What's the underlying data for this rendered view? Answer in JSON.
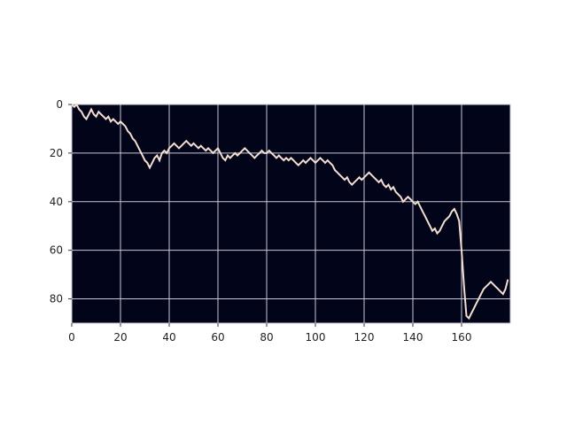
{
  "chart_data": {
    "type": "line",
    "title": "",
    "xlabel": "",
    "ylabel": "",
    "xlim": [
      0,
      180
    ],
    "ylim": [
      90,
      0
    ],
    "y_axis_inverted": true,
    "grid": true,
    "xticks": [
      0,
      20,
      40,
      60,
      80,
      100,
      120,
      140,
      160
    ],
    "yticks": [
      0,
      20,
      40,
      60,
      80
    ],
    "colors": {
      "background": "#02041a",
      "line": "#f3ded0",
      "grid": "#c8c8d4"
    },
    "series": [
      {
        "x": [
          0,
          1,
          2,
          3,
          4,
          5,
          6,
          7,
          8,
          9,
          10,
          11,
          12,
          13,
          14,
          15,
          16,
          17,
          18,
          19,
          20,
          21,
          22,
          23,
          24,
          25,
          26,
          27,
          28,
          29,
          30,
          31,
          32,
          33,
          34,
          35,
          36,
          37,
          38,
          39,
          40,
          41,
          42,
          43,
          44,
          45,
          46,
          47,
          48,
          49,
          50,
          51,
          52,
          53,
          54,
          55,
          56,
          57,
          58,
          59,
          60,
          61,
          62,
          63,
          64,
          65,
          66,
          67,
          68,
          69,
          70,
          71,
          72,
          73,
          74,
          75,
          76,
          77,
          78,
          79,
          80,
          81,
          82,
          83,
          84,
          85,
          86,
          87,
          88,
          89,
          90,
          91,
          92,
          93,
          94,
          95,
          96,
          97,
          98,
          99,
          100,
          101,
          102,
          103,
          104,
          105,
          106,
          107,
          108,
          109,
          110,
          111,
          112,
          113,
          114,
          115,
          116,
          117,
          118,
          119,
          120,
          121,
          122,
          123,
          124,
          125,
          126,
          127,
          128,
          129,
          130,
          131,
          132,
          133,
          134,
          135,
          136,
          137,
          138,
          139,
          140,
          141,
          142,
          143,
          144,
          145,
          146,
          147,
          148,
          149,
          150,
          151,
          152,
          153,
          154,
          155,
          156,
          157,
          158,
          159,
          160,
          161,
          162,
          163,
          164,
          165,
          166,
          167,
          168,
          169,
          170,
          171,
          172,
          173,
          174,
          175,
          176,
          177,
          178,
          179
        ],
        "y": [
          0,
          1,
          0,
          2,
          3,
          5,
          6,
          4,
          2,
          4,
          5,
          3,
          4,
          5,
          6,
          5,
          7,
          6,
          7,
          8,
          7,
          8,
          9,
          11,
          12,
          14,
          15,
          17,
          19,
          21,
          23,
          24,
          26,
          24,
          22,
          21,
          23,
          20,
          19,
          20,
          18,
          17,
          16,
          17,
          18,
          17,
          16,
          15,
          16,
          17,
          16,
          17,
          18,
          17,
          18,
          19,
          18,
          19,
          20,
          19,
          18,
          20,
          22,
          23,
          21,
          22,
          21,
          20,
          21,
          20,
          19,
          18,
          19,
          20,
          21,
          22,
          21,
          20,
          19,
          20,
          20,
          19,
          20,
          21,
          22,
          21,
          22,
          23,
          22,
          23,
          22,
          23,
          24,
          25,
          24,
          23,
          24,
          23,
          22,
          23,
          24,
          23,
          22,
          23,
          24,
          23,
          24,
          25,
          27,
          28,
          29,
          30,
          31,
          30,
          32,
          33,
          32,
          31,
          30,
          31,
          30,
          29,
          28,
          29,
          30,
          31,
          32,
          31,
          33,
          34,
          33,
          35,
          34,
          36,
          37,
          38,
          40,
          39,
          38,
          39,
          40,
          41,
          40,
          42,
          44,
          46,
          48,
          50,
          52,
          51,
          53,
          52,
          50,
          48,
          47,
          46,
          44,
          43,
          45,
          48,
          60,
          75,
          87,
          88,
          86,
          84,
          82,
          80,
          78,
          76,
          75,
          74,
          73,
          74,
          75,
          76,
          77,
          78,
          76,
          72
        ]
      }
    ]
  }
}
